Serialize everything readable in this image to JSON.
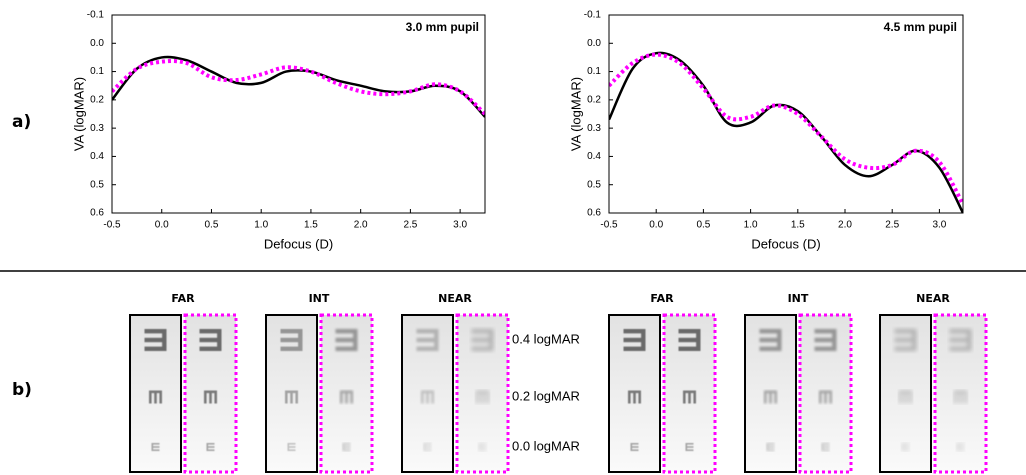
{
  "chart_data": [
    {
      "type": "line",
      "annotation": "3.0 mm pupil",
      "x_label": "Defocus (D)",
      "y_label": "VA (logMAR)",
      "x": [
        -0.5,
        -0.25,
        0,
        0.25,
        0.5,
        0.75,
        1.0,
        1.25,
        1.5,
        1.75,
        2.0,
        2.25,
        2.5,
        2.75,
        3.0,
        3.25
      ],
      "series": [
        {
          "color": "#000000",
          "style": "solid",
          "values": [
            0.2,
            0.09,
            0.05,
            0.06,
            0.1,
            0.14,
            0.14,
            0.1,
            0.1,
            0.13,
            0.15,
            0.17,
            0.17,
            0.15,
            0.17,
            0.26
          ]
        },
        {
          "color": "#ff00ff",
          "style": "dotted",
          "values": [
            0.17,
            0.09,
            0.065,
            0.07,
            0.12,
            0.13,
            0.11,
            0.085,
            0.1,
            0.14,
            0.17,
            0.18,
            0.17,
            0.145,
            0.17,
            0.25
          ]
        }
      ],
      "xlim": [
        -0.5,
        3.25
      ],
      "xticks": [
        -0.5,
        {
          "value": 0,
          "label": "0.0"
        },
        0.5,
        {
          "value": 1,
          "label": "1.0"
        },
        1.5,
        {
          "value": 2,
          "label": "2.0"
        },
        2.5,
        {
          "value": 3,
          "label": "3.0"
        }
      ],
      "ylim": [
        0.6,
        -0.1
      ],
      "yticks": [
        -0.1,
        {
          "value": 0,
          "label": "0.0"
        },
        0.1,
        0.2,
        0.3,
        0.4,
        0.5,
        0.6
      ]
    },
    {
      "type": "line",
      "annotation": "4.5 mm pupil",
      "x_label": "Defocus (D)",
      "y_label": "VA (logMAR)",
      "x": [
        -0.5,
        -0.25,
        0,
        0.25,
        0.5,
        0.75,
        1.0,
        1.25,
        1.5,
        1.75,
        2.0,
        2.25,
        2.5,
        2.75,
        3.0,
        3.25
      ],
      "series": [
        {
          "color": "#000000",
          "style": "solid",
          "values": [
            0.27,
            0.09,
            0.035,
            0.06,
            0.15,
            0.28,
            0.28,
            0.22,
            0.24,
            0.33,
            0.43,
            0.47,
            0.43,
            0.38,
            0.44,
            0.6
          ]
        },
        {
          "color": "#ff00ff",
          "style": "dotted",
          "values": [
            0.15,
            0.07,
            0.04,
            0.07,
            0.16,
            0.26,
            0.26,
            0.22,
            0.25,
            0.33,
            0.41,
            0.44,
            0.43,
            0.38,
            0.42,
            0.57
          ]
        }
      ],
      "xlim": [
        -0.5,
        3.25
      ],
      "xticks": [
        -0.5,
        {
          "value": 0,
          "label": "0.0"
        },
        0.5,
        {
          "value": 1,
          "label": "1.0"
        },
        1.5,
        {
          "value": 2,
          "label": "2.0"
        },
        2.5,
        {
          "value": 3,
          "label": "3.0"
        }
      ],
      "ylim": [
        0.6,
        -0.1
      ],
      "yticks": [
        -0.1,
        {
          "value": 0,
          "label": "0.0"
        },
        0.1,
        0.2,
        0.3,
        0.4,
        0.5,
        0.6
      ]
    }
  ],
  "panels": {
    "label_a": "a)",
    "label_b": "b)",
    "conditions": [
      "FAR",
      "INT",
      "NEAR",
      "FAR",
      "INT",
      "NEAR"
    ],
    "levels": [
      "0.4 logMAR",
      "0.2 logMAR",
      "0.0 logMAR"
    ]
  }
}
